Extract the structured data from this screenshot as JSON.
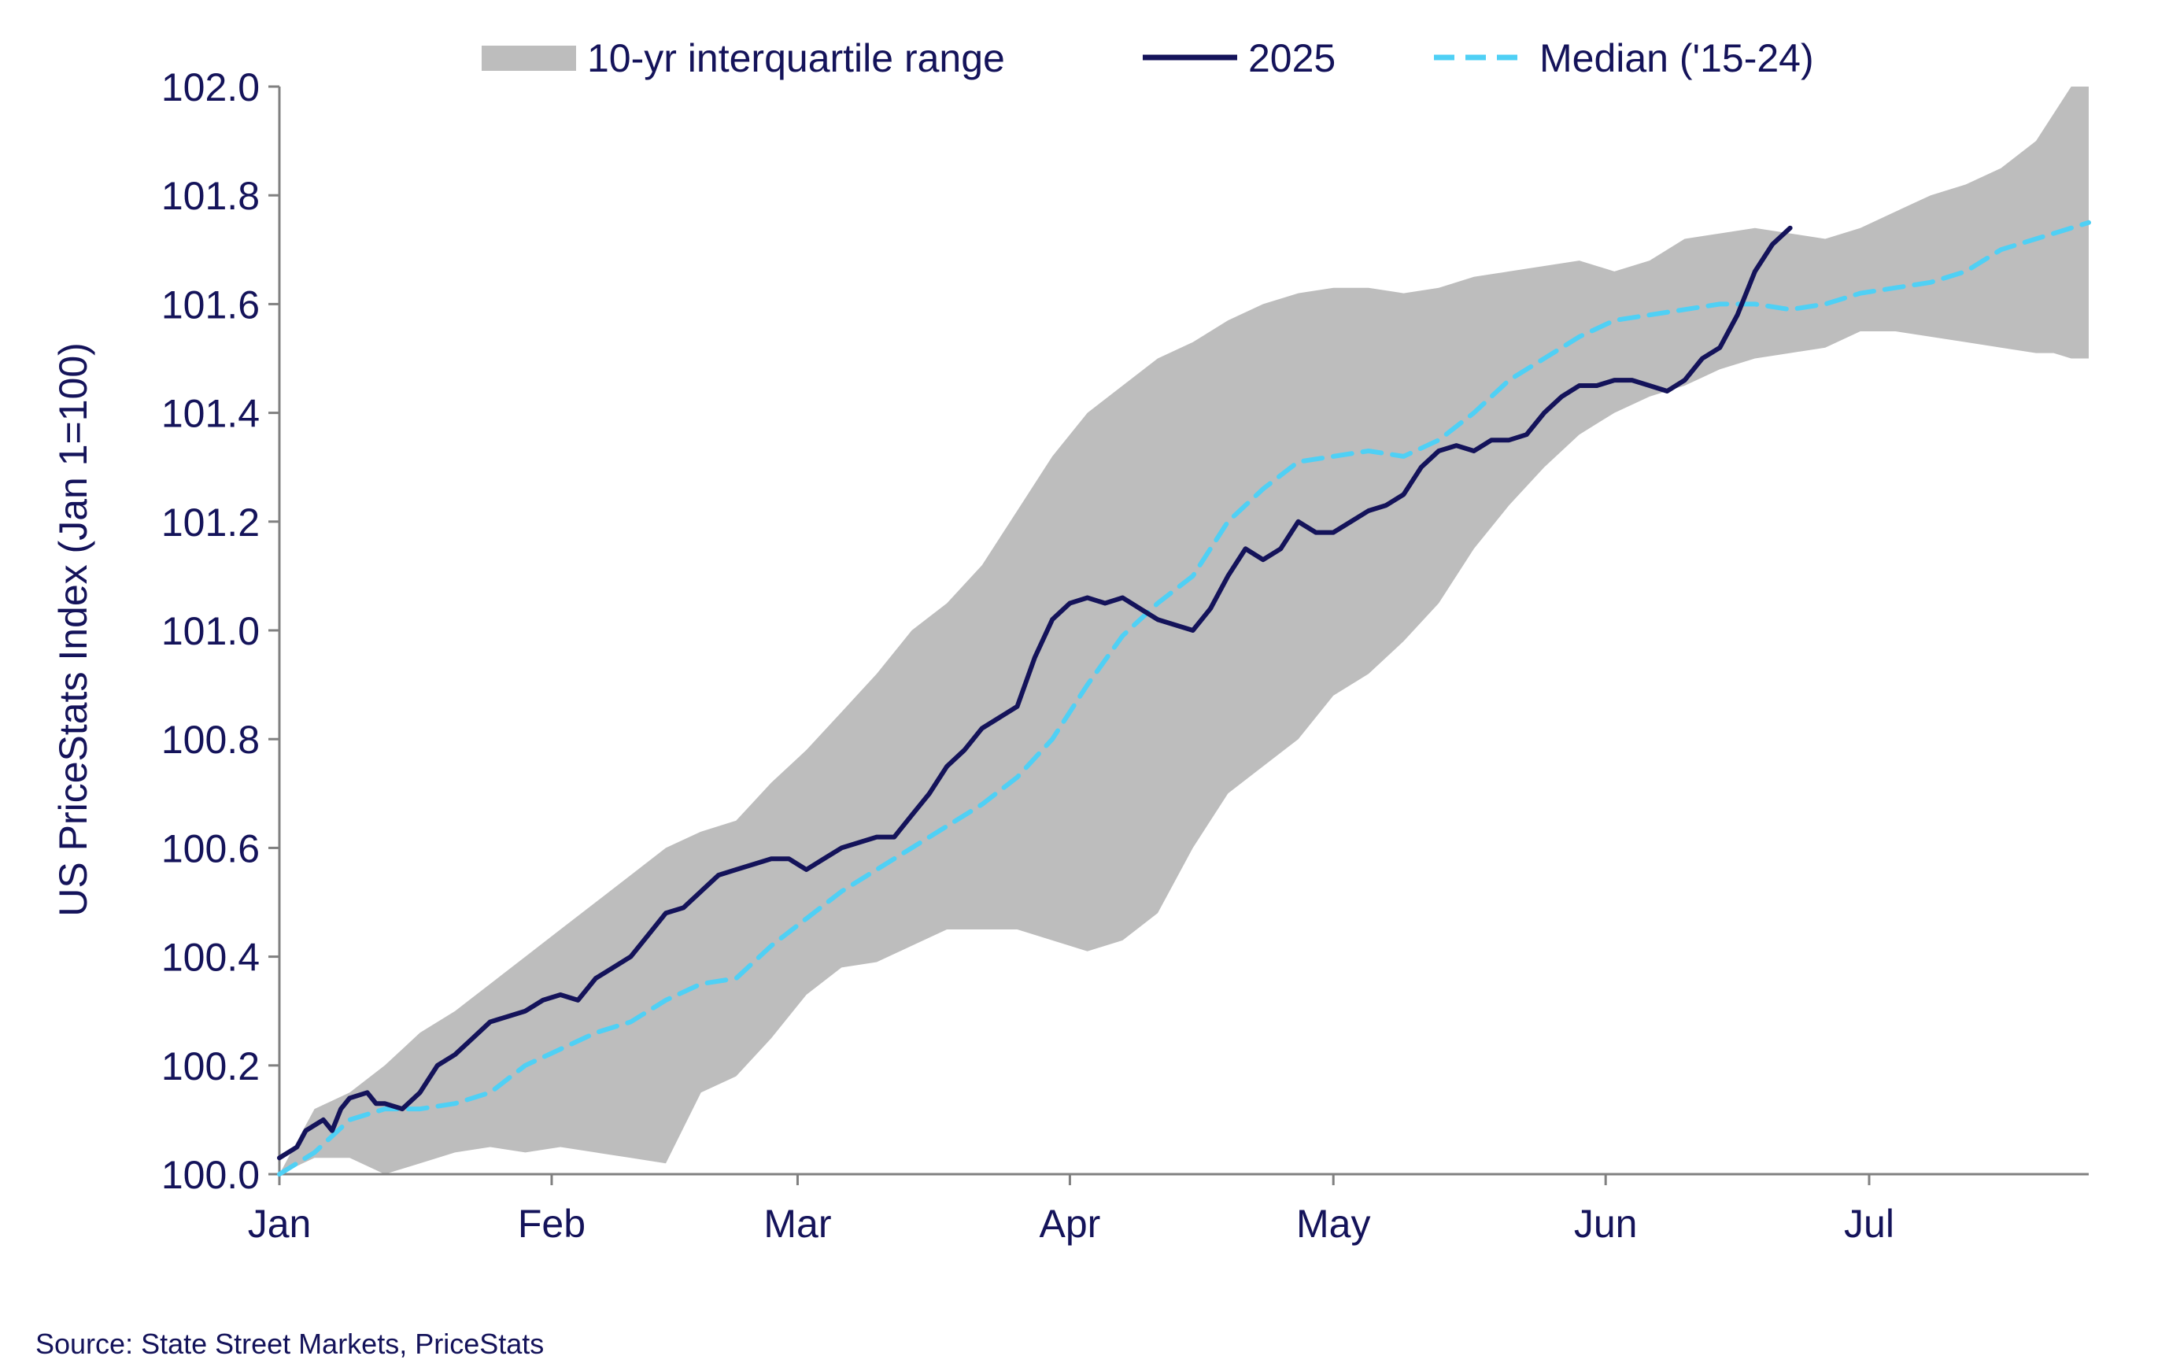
{
  "chart_data": {
    "type": "line",
    "title": "",
    "xlabel": "",
    "ylabel": "US PriceStats Index (Jan 1=100)",
    "ylim": [
      100.0,
      102.0
    ],
    "yticks": [
      "100.0",
      "100.2",
      "100.4",
      "100.6",
      "100.8",
      "101.0",
      "101.2",
      "101.4",
      "101.6",
      "101.8",
      "102.0"
    ],
    "xlim": [
      0,
      206
    ],
    "xticks": [
      {
        "label": "Jan",
        "day": 0
      },
      {
        "label": "Feb",
        "day": 31
      },
      {
        "label": "Mar",
        "day": 59
      },
      {
        "label": "Apr",
        "day": 90
      },
      {
        "label": "May",
        "day": 120
      },
      {
        "label": "Jun",
        "day": 151
      },
      {
        "label": "Jul",
        "day": 181
      }
    ],
    "legend": {
      "position": "top",
      "entries": [
        {
          "key": "band",
          "label": "10-yr interquartile range"
        },
        {
          "key": "y2025",
          "label": "2025"
        },
        {
          "key": "median",
          "label": "Median ('15-24)"
        }
      ]
    },
    "series": [
      {
        "name": "10-yr interquartile range",
        "kind": "band",
        "x": [
          0,
          4,
          8,
          12,
          16,
          20,
          24,
          28,
          32,
          36,
          40,
          44,
          48,
          52,
          56,
          60,
          64,
          68,
          72,
          76,
          80,
          84,
          88,
          92,
          96,
          100,
          104,
          108,
          112,
          116,
          120,
          124,
          128,
          132,
          136,
          140,
          144,
          148,
          152,
          156,
          160,
          164,
          168,
          172,
          176,
          180,
          184,
          188,
          192,
          196,
          200,
          202,
          204,
          206
        ],
        "low": [
          100.0,
          100.03,
          100.03,
          100.0,
          100.02,
          100.04,
          100.05,
          100.04,
          100.05,
          100.04,
          100.03,
          100.02,
          100.15,
          100.18,
          100.25,
          100.33,
          100.38,
          100.39,
          100.42,
          100.45,
          100.45,
          100.45,
          100.43,
          100.41,
          100.43,
          100.48,
          100.6,
          100.7,
          100.75,
          100.8,
          100.88,
          100.92,
          100.98,
          101.05,
          101.15,
          101.23,
          101.3,
          101.36,
          101.4,
          101.43,
          101.45,
          101.48,
          101.5,
          101.51,
          101.52,
          101.55,
          101.55,
          101.54,
          101.53,
          101.52,
          101.51,
          101.51,
          101.5,
          101.5
        ],
        "high": [
          100.0,
          100.12,
          100.15,
          100.2,
          100.26,
          100.3,
          100.35,
          100.4,
          100.45,
          100.5,
          100.55,
          100.6,
          100.63,
          100.65,
          100.72,
          100.78,
          100.85,
          100.92,
          101.0,
          101.05,
          101.12,
          101.22,
          101.32,
          101.4,
          101.45,
          101.5,
          101.53,
          101.57,
          101.6,
          101.62,
          101.63,
          101.63,
          101.62,
          101.63,
          101.65,
          101.66,
          101.67,
          101.68,
          101.66,
          101.68,
          101.72,
          101.73,
          101.74,
          101.73,
          101.72,
          101.74,
          101.77,
          101.8,
          101.82,
          101.85,
          101.9,
          101.95,
          102.0,
          102.0
        ]
      },
      {
        "name": "2025",
        "kind": "line",
        "color": "#14135a",
        "x": [
          0,
          2,
          3,
          4,
          5,
          6,
          7,
          8,
          10,
          11,
          12,
          14,
          16,
          18,
          20,
          22,
          24,
          26,
          28,
          30,
          32,
          34,
          36,
          38,
          40,
          42,
          44,
          46,
          48,
          50,
          52,
          54,
          56,
          58,
          60,
          62,
          64,
          66,
          68,
          70,
          72,
          74,
          76,
          78,
          80,
          82,
          84,
          86,
          88,
          90,
          92,
          94,
          96,
          98,
          100,
          102,
          104,
          106,
          108,
          110,
          112,
          114,
          116,
          118,
          120,
          122,
          124,
          126,
          128,
          130,
          132,
          134,
          136,
          138,
          140,
          142,
          144,
          146,
          148,
          150,
          152,
          154,
          156,
          158,
          160,
          162,
          164,
          166,
          168,
          170,
          172
        ],
        "y": [
          100.03,
          100.05,
          100.08,
          100.09,
          100.1,
          100.08,
          100.12,
          100.14,
          100.15,
          100.13,
          100.13,
          100.12,
          100.15,
          100.2,
          100.22,
          100.25,
          100.28,
          100.29,
          100.3,
          100.32,
          100.33,
          100.32,
          100.36,
          100.38,
          100.4,
          100.44,
          100.48,
          100.49,
          100.52,
          100.55,
          100.56,
          100.57,
          100.58,
          100.58,
          100.56,
          100.58,
          100.6,
          100.61,
          100.62,
          100.62,
          100.66,
          100.7,
          100.75,
          100.78,
          100.82,
          100.84,
          100.86,
          100.95,
          101.02,
          101.05,
          101.06,
          101.05,
          101.06,
          101.04,
          101.02,
          101.01,
          101.0,
          101.04,
          101.1,
          101.15,
          101.13,
          101.15,
          101.2,
          101.18,
          101.18,
          101.2,
          101.22,
          101.23,
          101.25,
          101.3,
          101.33,
          101.34,
          101.33,
          101.35,
          101.35,
          101.36,
          101.4,
          101.43,
          101.45,
          101.45,
          101.46,
          101.46,
          101.45,
          101.44,
          101.46,
          101.5,
          101.52,
          101.58,
          101.66,
          101.71,
          101.74
        ]
      },
      {
        "name": "Median ('15-24)",
        "kind": "dashed-line",
        "color": "#4fd0f5",
        "x": [
          0,
          4,
          8,
          12,
          16,
          20,
          24,
          28,
          32,
          36,
          40,
          44,
          48,
          52,
          56,
          60,
          64,
          68,
          72,
          76,
          80,
          84,
          88,
          92,
          96,
          100,
          104,
          108,
          112,
          116,
          120,
          124,
          128,
          132,
          136,
          140,
          144,
          148,
          152,
          156,
          160,
          164,
          168,
          172,
          176,
          180,
          184,
          188,
          192,
          196,
          200,
          204,
          206
        ],
        "y": [
          100.0,
          100.04,
          100.1,
          100.12,
          100.12,
          100.13,
          100.15,
          100.2,
          100.23,
          100.26,
          100.28,
          100.32,
          100.35,
          100.36,
          100.42,
          100.47,
          100.52,
          100.56,
          100.6,
          100.64,
          100.68,
          100.73,
          100.8,
          100.9,
          100.99,
          101.05,
          101.1,
          101.2,
          101.26,
          101.31,
          101.32,
          101.33,
          101.32,
          101.35,
          101.4,
          101.46,
          101.5,
          101.54,
          101.57,
          101.58,
          101.59,
          101.6,
          101.6,
          101.59,
          101.6,
          101.62,
          101.63,
          101.64,
          101.66,
          101.7,
          101.72,
          101.74,
          101.75
        ]
      }
    ],
    "colors": {
      "band": "#bdbdbd",
      "y2025": "#14135a",
      "median": "#4fd0f5",
      "text": "#14135a",
      "axis": "#808080"
    },
    "source": "Source: State Street Markets, PriceStats"
  }
}
